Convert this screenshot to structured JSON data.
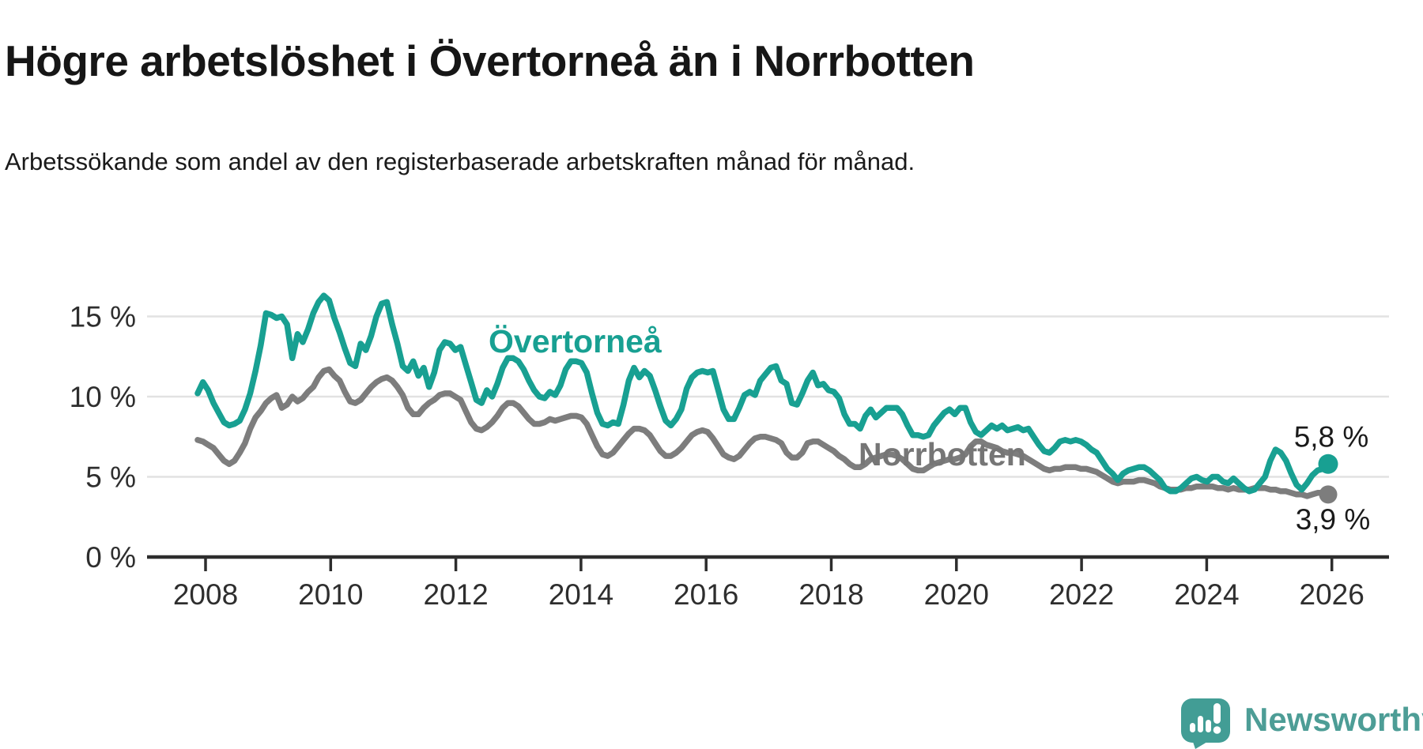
{
  "header": {
    "title": "Högre arbetslöshet i Övertorneå än i Norrbotten",
    "subtitle": "Arbetssökande som andel av den registerbaserade arbetskraften månad för månad."
  },
  "chart": {
    "series_labels": {
      "overtornea": "Övertorneå",
      "norrbotten": "Norrbotten"
    },
    "end_labels": {
      "overtornea": "5,8 %",
      "norrbotten": "3,9 %"
    },
    "colors": {
      "overtornea": "#18a092",
      "norrbotten": "#7d7d7d",
      "overtornea_label": "#18a092",
      "norrbotten_label": "#767676",
      "grid": "#e2e2e2",
      "axis": "#2d2d2d",
      "tick_text": "#2e2e2e",
      "end_label_text": "#1a1a1a"
    },
    "y_ticks": [
      {
        "value": 0,
        "label": "0 %"
      },
      {
        "value": 5,
        "label": "5 %"
      },
      {
        "value": 10,
        "label": "10 %"
      },
      {
        "value": 15,
        "label": "15 %"
      }
    ],
    "x_ticks": [
      {
        "year": 2008,
        "label": "2008"
      },
      {
        "year": 2010,
        "label": "2010"
      },
      {
        "year": 2012,
        "label": "2012"
      },
      {
        "year": 2014,
        "label": "2014"
      },
      {
        "year": 2016,
        "label": "2016"
      },
      {
        "year": 2018,
        "label": "2018"
      },
      {
        "year": 2020,
        "label": "2020"
      },
      {
        "year": 2022,
        "label": "2022"
      },
      {
        "year": 2024,
        "label": "2024"
      },
      {
        "year": 2026,
        "label": "2026"
      }
    ]
  },
  "chart_data": {
    "type": "line",
    "title": "Högre arbetslöshet i Övertorneå än i Norrbotten",
    "subtitle": "Arbetssökande som andel av den registerbaserade arbetskraften månad för månad.",
    "frequency": "monthly",
    "start": "2008-01",
    "end": "2025-12",
    "unit": "%",
    "ylim": [
      0,
      16.5
    ],
    "grid": true,
    "legend_position": "inline",
    "series": [
      {
        "name": "Övertorneå",
        "color": "#18a092",
        "end_value": 5.8,
        "values": [
          10.2,
          10.9,
          10.4,
          9.6,
          9.0,
          8.4,
          8.2,
          8.3,
          8.5,
          9.2,
          10.2,
          11.6,
          13.2,
          15.2,
          15.1,
          14.9,
          15.0,
          14.5,
          12.4,
          13.9,
          13.4,
          14.2,
          15.2,
          15.9,
          16.3,
          16.0,
          14.9,
          14.0,
          13.0,
          12.1,
          11.9,
          13.3,
          12.9,
          13.8,
          15.0,
          15.8,
          15.9,
          14.5,
          13.3,
          11.9,
          11.6,
          12.2,
          11.3,
          11.8,
          10.6,
          11.5,
          12.9,
          13.4,
          13.3,
          12.9,
          13.1,
          12.0,
          10.9,
          9.8,
          9.6,
          10.4,
          10.0,
          10.8,
          11.8,
          12.4,
          12.4,
          12.2,
          11.7,
          11.0,
          10.4,
          10.0,
          9.9,
          10.3,
          10.1,
          10.7,
          11.7,
          12.2,
          12.2,
          12.1,
          11.5,
          10.2,
          9.0,
          8.3,
          8.2,
          8.4,
          8.3,
          9.5,
          11.0,
          11.8,
          11.2,
          11.6,
          11.3,
          10.4,
          9.4,
          8.5,
          8.2,
          8.6,
          9.2,
          10.5,
          11.2,
          11.5,
          11.6,
          11.5,
          11.6,
          10.4,
          9.2,
          8.6,
          8.6,
          9.3,
          10.1,
          10.3,
          10.1,
          11.0,
          11.4,
          11.8,
          11.9,
          11.0,
          10.8,
          9.6,
          9.5,
          10.2,
          11.0,
          11.5,
          10.7,
          10.8,
          10.4,
          10.3,
          9.9,
          8.9,
          8.3,
          8.3,
          8.0,
          8.8,
          9.2,
          8.7,
          9.0,
          9.3,
          9.3,
          9.3,
          8.9,
          8.2,
          7.6,
          7.6,
          7.5,
          7.6,
          8.2,
          8.6,
          9.0,
          9.2,
          8.9,
          9.3,
          9.3,
          8.4,
          7.8,
          7.6,
          7.9,
          8.2,
          8.0,
          8.2,
          7.9,
          8.0,
          8.1,
          7.9,
          8.0,
          7.5,
          7.0,
          6.6,
          6.5,
          6.8,
          7.2,
          7.3,
          7.2,
          7.3,
          7.2,
          7.0,
          6.7,
          6.5,
          6.0,
          5.5,
          5.2,
          4.8,
          5.2,
          5.4,
          5.5,
          5.6,
          5.6,
          5.4,
          5.1,
          4.8,
          4.3,
          4.1,
          4.1,
          4.3,
          4.6,
          4.9,
          5.0,
          4.8,
          4.7,
          5.0,
          5.0,
          4.7,
          4.6,
          4.9,
          4.6,
          4.3,
          4.1,
          4.2,
          4.6,
          5.0,
          6.0,
          6.7,
          6.5,
          6.0,
          5.2,
          4.5,
          4.2,
          4.6,
          5.1,
          5.4,
          5.5,
          5.8
        ]
      },
      {
        "name": "Norrbotten",
        "color": "#7d7d7d",
        "end_value": 3.9,
        "values": [
          7.3,
          7.2,
          7.0,
          6.8,
          6.4,
          6.0,
          5.8,
          6.0,
          6.5,
          7.1,
          8.0,
          8.7,
          9.1,
          9.6,
          9.9,
          10.1,
          9.3,
          9.5,
          10.0,
          9.7,
          9.9,
          10.3,
          10.6,
          11.2,
          11.6,
          11.7,
          11.3,
          11.0,
          10.3,
          9.7,
          9.6,
          9.8,
          10.2,
          10.6,
          10.9,
          11.1,
          11.2,
          11.0,
          10.6,
          10.1,
          9.3,
          8.9,
          8.9,
          9.3,
          9.6,
          9.8,
          10.1,
          10.2,
          10.2,
          10.0,
          9.8,
          9.1,
          8.4,
          8.0,
          7.9,
          8.1,
          8.4,
          8.8,
          9.3,
          9.6,
          9.6,
          9.4,
          9.0,
          8.6,
          8.3,
          8.3,
          8.4,
          8.6,
          8.5,
          8.6,
          8.7,
          8.8,
          8.8,
          8.7,
          8.3,
          7.6,
          6.9,
          6.4,
          6.3,
          6.5,
          6.9,
          7.3,
          7.7,
          8.0,
          8.0,
          7.9,
          7.6,
          7.1,
          6.6,
          6.3,
          6.3,
          6.5,
          6.8,
          7.2,
          7.6,
          7.8,
          7.9,
          7.8,
          7.4,
          6.9,
          6.4,
          6.2,
          6.1,
          6.3,
          6.7,
          7.1,
          7.4,
          7.5,
          7.5,
          7.4,
          7.3,
          7.1,
          6.5,
          6.2,
          6.2,
          6.5,
          7.1,
          7.2,
          7.2,
          7.0,
          6.8,
          6.6,
          6.3,
          6.1,
          5.8,
          5.6,
          5.6,
          5.8,
          6.1,
          6.2,
          6.3,
          6.4,
          6.4,
          6.3,
          6.1,
          5.8,
          5.5,
          5.4,
          5.4,
          5.6,
          5.8,
          5.9,
          6.0,
          6.1,
          6.1,
          6.2,
          6.4,
          6.9,
          7.2,
          7.2,
          7.0,
          6.9,
          6.8,
          6.6,
          6.5,
          6.5,
          6.4,
          6.3,
          6.1,
          5.9,
          5.7,
          5.5,
          5.4,
          5.5,
          5.5,
          5.6,
          5.6,
          5.6,
          5.5,
          5.5,
          5.4,
          5.3,
          5.1,
          4.9,
          4.7,
          4.6,
          4.7,
          4.7,
          4.7,
          4.8,
          4.8,
          4.7,
          4.6,
          4.4,
          4.3,
          4.2,
          4.2,
          4.2,
          4.3,
          4.3,
          4.4,
          4.4,
          4.4,
          4.4,
          4.3,
          4.3,
          4.2,
          4.3,
          4.2,
          4.2,
          4.2,
          4.3,
          4.3,
          4.3,
          4.2,
          4.2,
          4.1,
          4.1,
          4.0,
          3.9,
          3.9,
          3.8,
          3.9,
          4.0,
          4.0,
          3.9
        ]
      }
    ]
  },
  "footer": {
    "brand": "Newsworthy",
    "logo_color": "#429d95",
    "brand_text_color": "#4d9d96"
  }
}
